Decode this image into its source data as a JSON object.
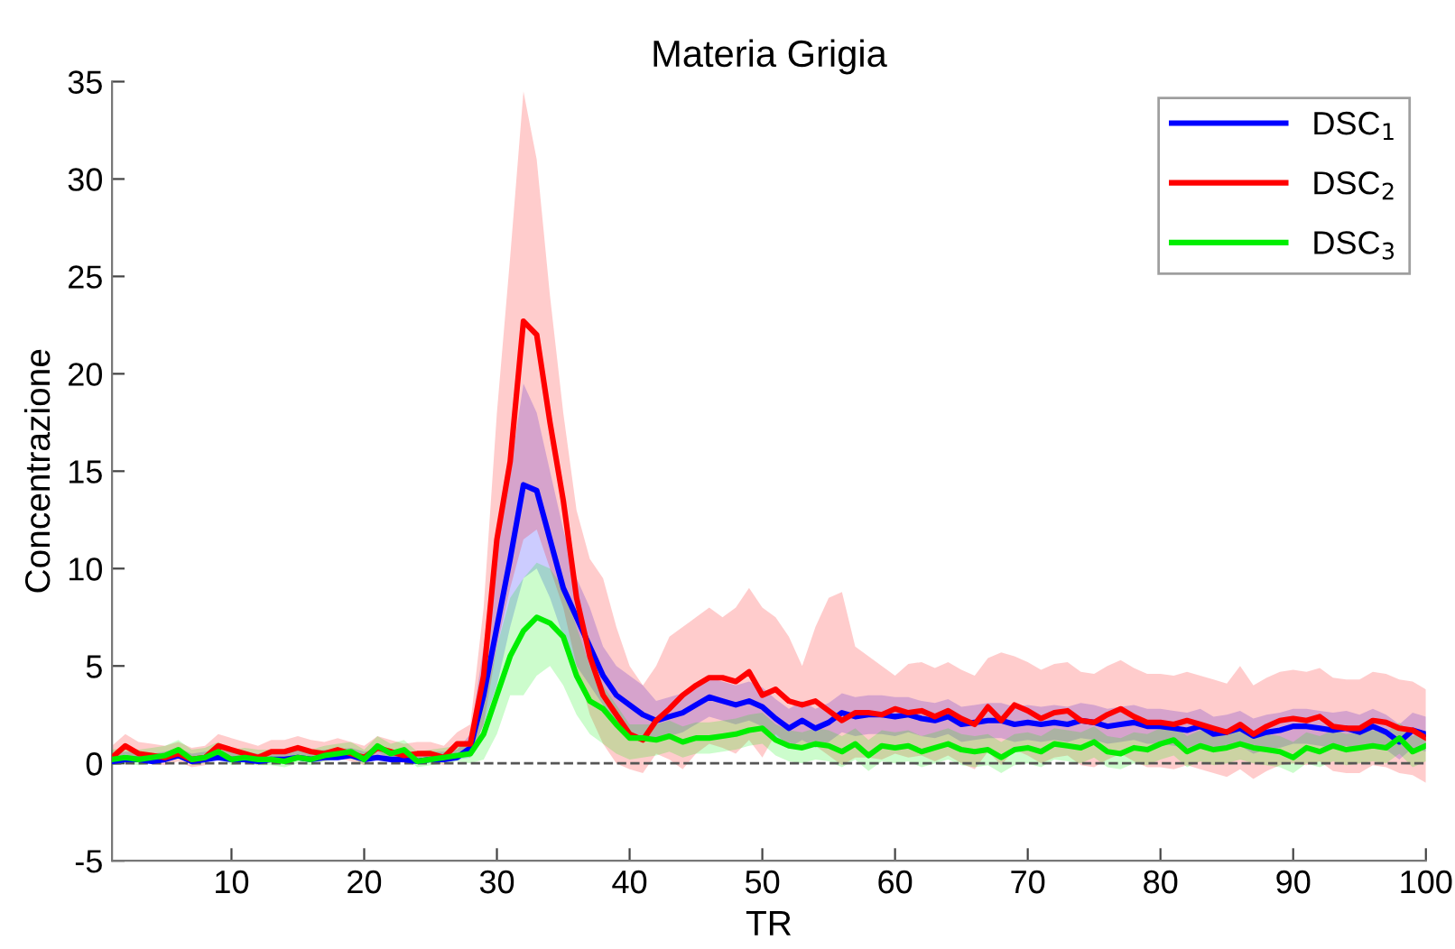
{
  "chart_data": {
    "type": "line",
    "title": "Materia Grigia",
    "xlabel": "TR",
    "ylabel": "Concentrazione",
    "x": [
      1,
      2,
      3,
      4,
      5,
      6,
      7,
      8,
      9,
      10,
      11,
      12,
      13,
      14,
      15,
      16,
      17,
      18,
      19,
      20,
      21,
      22,
      23,
      24,
      25,
      26,
      27,
      28,
      29,
      30,
      31,
      32,
      33,
      34,
      35,
      36,
      37,
      38,
      39,
      40,
      41,
      42,
      43,
      44,
      45,
      46,
      47,
      48,
      49,
      50,
      51,
      52,
      53,
      54,
      55,
      56,
      57,
      58,
      59,
      60,
      61,
      62,
      63,
      64,
      65,
      66,
      67,
      68,
      69,
      70,
      71,
      72,
      73,
      74,
      75,
      76,
      77,
      78,
      79,
      80,
      81,
      82,
      83,
      84,
      85,
      86,
      87,
      88,
      89,
      90,
      91,
      92,
      93,
      94,
      95,
      96,
      97,
      98,
      99,
      100
    ],
    "series": [
      {
        "name": "DSC$_{1}$",
        "color": "#0000ff",
        "values": [
          0.1,
          0.2,
          0.2,
          0.1,
          0.2,
          0.4,
          0.1,
          0.2,
          0.3,
          0.2,
          0.2,
          0.1,
          0.2,
          0.2,
          0.3,
          0.2,
          0.3,
          0.3,
          0.4,
          0.2,
          0.3,
          0.2,
          0.2,
          0.1,
          0.2,
          0.2,
          0.3,
          0.8,
          3.5,
          7.0,
          10.5,
          14.3,
          14.0,
          11.5,
          9.0,
          7.5,
          6.0,
          4.5,
          3.5,
          3.0,
          2.5,
          2.2,
          2.4,
          2.6,
          3.0,
          3.4,
          3.2,
          3.0,
          3.2,
          2.9,
          2.3,
          1.8,
          2.2,
          1.8,
          2.1,
          2.6,
          2.4,
          2.5,
          2.5,
          2.4,
          2.5,
          2.3,
          2.2,
          2.4,
          2.0,
          2.1,
          2.2,
          2.2,
          2.0,
          2.1,
          2.0,
          2.1,
          2.0,
          2.2,
          2.1,
          1.9,
          2.0,
          2.1,
          1.9,
          1.9,
          1.8,
          1.7,
          1.9,
          1.5,
          1.6,
          1.8,
          1.4,
          1.6,
          1.7,
          1.9,
          1.9,
          1.8,
          1.7,
          1.8,
          1.6,
          1.9,
          1.6,
          1.1,
          1.7,
          1.5
        ],
        "upper": [
          0.5,
          0.6,
          0.6,
          0.5,
          0.6,
          0.8,
          0.5,
          0.6,
          0.7,
          0.6,
          0.6,
          0.5,
          0.6,
          0.6,
          0.7,
          0.6,
          0.7,
          0.7,
          0.8,
          0.6,
          0.7,
          0.6,
          0.6,
          0.5,
          0.6,
          0.6,
          0.7,
          1.5,
          6,
          11,
          15,
          19.5,
          18,
          15,
          12,
          9.5,
          8,
          6,
          5,
          4.5,
          4,
          3.2,
          3.4,
          3.6,
          4.0,
          4.4,
          4.2,
          4.0,
          4.2,
          3.9,
          3.3,
          2.8,
          3.2,
          2.8,
          3.1,
          3.6,
          3.4,
          3.5,
          3.5,
          3.4,
          3.4,
          3.2,
          3.1,
          3.3,
          2.9,
          3.0,
          3.1,
          3.1,
          2.9,
          3.0,
          2.9,
          3.0,
          2.9,
          3.1,
          3.0,
          2.8,
          2.9,
          3.0,
          2.8,
          2.8,
          2.7,
          2.6,
          2.8,
          2.4,
          2.5,
          2.7,
          2.3,
          2.5,
          2.6,
          2.8,
          2.8,
          2.7,
          2.6,
          2.7,
          2.5,
          2.8,
          2.5,
          2.0,
          2.6,
          2.4
        ],
        "lower": [
          0.0,
          0.1,
          0.1,
          0.0,
          0.1,
          0.3,
          0.0,
          0.1,
          0.2,
          0.1,
          0.1,
          0.0,
          0.1,
          0.1,
          0.2,
          0.1,
          0.2,
          0.2,
          0.3,
          0.1,
          0.2,
          0.1,
          0.1,
          0.0,
          0.1,
          0.1,
          0.2,
          0.3,
          2,
          4,
          7,
          9.5,
          10,
          8.5,
          6.5,
          5,
          4,
          3,
          2,
          1.5,
          1.2,
          1.2,
          1.4,
          1.6,
          2.0,
          2.4,
          2.2,
          2.0,
          2.2,
          1.9,
          1.3,
          0.8,
          1.2,
          0.8,
          1.1,
          1.6,
          1.4,
          1.5,
          1.5,
          1.4,
          1.6,
          1.4,
          1.3,
          1.5,
          1.1,
          1.2,
          1.3,
          1.3,
          1.1,
          1.2,
          1.1,
          1.2,
          1.1,
          1.3,
          1.2,
          1.0,
          1.1,
          1.2,
          1.0,
          1.0,
          0.9,
          0.8,
          1.0,
          0.6,
          0.7,
          0.9,
          0.5,
          0.7,
          0.8,
          1.0,
          1.0,
          0.9,
          0.8,
          0.9,
          0.7,
          1.0,
          0.7,
          0.2,
          0.8,
          0.6
        ]
      },
      {
        "name": "DSC$_{2}$",
        "color": "#ff0000",
        "values": [
          0.3,
          0.9,
          0.5,
          0.4,
          0.3,
          0.5,
          0.2,
          0.3,
          0.9,
          0.7,
          0.5,
          0.3,
          0.6,
          0.6,
          0.8,
          0.6,
          0.5,
          0.7,
          0.5,
          0.3,
          0.8,
          0.6,
          0.4,
          0.5,
          0.5,
          0.3,
          1.0,
          1.0,
          4.5,
          11.5,
          15.5,
          22.7,
          22.0,
          17.5,
          13.5,
          8.5,
          5.5,
          3.5,
          2.5,
          1.5,
          1.2,
          2.2,
          2.8,
          3.5,
          4.0,
          4.4,
          4.4,
          4.2,
          4.7,
          3.5,
          3.8,
          3.2,
          3.0,
          3.2,
          2.7,
          2.2,
          2.6,
          2.6,
          2.5,
          2.8,
          2.6,
          2.7,
          2.4,
          2.7,
          2.3,
          2.0,
          2.9,
          2.2,
          3.0,
          2.7,
          2.3,
          2.6,
          2.7,
          2.2,
          2.1,
          2.5,
          2.8,
          2.4,
          2.1,
          2.1,
          2.0,
          2.2,
          2.0,
          1.8,
          1.6,
          2.0,
          1.5,
          1.9,
          2.2,
          2.3,
          2.2,
          2.4,
          1.9,
          1.8,
          1.8,
          2.2,
          2.1,
          1.8,
          1.7,
          1.3
        ],
        "upper": [
          0.9,
          1.5,
          1.1,
          1.0,
          0.9,
          1.1,
          0.8,
          0.9,
          1.5,
          1.3,
          1.1,
          0.9,
          1.2,
          1.2,
          1.4,
          1.2,
          1.1,
          1.3,
          1.1,
          0.9,
          1.4,
          1.2,
          1.0,
          1.1,
          1.1,
          0.9,
          1.6,
          2,
          8,
          18,
          26,
          34.5,
          31,
          24,
          18,
          13,
          10.5,
          9.5,
          7,
          5,
          4,
          5,
          6.5,
          7,
          7.5,
          8,
          7.5,
          8,
          9,
          8,
          7.5,
          6.5,
          5,
          7,
          8.5,
          8.8,
          6,
          5.5,
          5,
          4.5,
          5.1,
          5.2,
          4.9,
          5.2,
          4.8,
          4.5,
          5.4,
          5.7,
          5.5,
          5.2,
          4.8,
          5.1,
          5.2,
          4.7,
          4.6,
          5.0,
          5.3,
          4.9,
          4.6,
          4.6,
          4.5,
          4.7,
          4.5,
          4.3,
          4.1,
          5.0,
          4.0,
          4.4,
          4.7,
          4.8,
          4.7,
          4.9,
          4.4,
          4.3,
          4.3,
          4.7,
          4.6,
          4.3,
          4.2,
          3.8
        ],
        "lower": [
          -0.1,
          0.5,
          0.1,
          0.0,
          -0.1,
          0.1,
          -0.2,
          -0.1,
          0.5,
          0.3,
          0.1,
          -0.1,
          0.2,
          0.2,
          0.4,
          0.2,
          0.1,
          0.3,
          0.1,
          -0.1,
          0.4,
          0.2,
          0.0,
          0.1,
          0.1,
          -0.1,
          0.6,
          0.3,
          2,
          6,
          9,
          11.5,
          12,
          10,
          8,
          5,
          2.5,
          1,
          0,
          -0.3,
          -0.5,
          0.5,
          0.2,
          -0.3,
          0.5,
          1,
          0.8,
          0.5,
          1.2,
          0.3,
          1.5,
          0.9,
          0.7,
          0.9,
          0.4,
          -0.1,
          0.3,
          0.3,
          0.2,
          0.5,
          0.3,
          0.4,
          0.1,
          0.4,
          0.0,
          -0.3,
          0.6,
          -0.1,
          0.7,
          0.4,
          0.0,
          0.3,
          0.4,
          -0.1,
          -0.2,
          0.2,
          0.5,
          0.1,
          -0.2,
          -0.2,
          -0.3,
          -0.1,
          -0.3,
          -0.5,
          -0.7,
          -0.3,
          -0.8,
          -0.4,
          -0.1,
          0.0,
          -0.1,
          0.1,
          -0.4,
          -0.5,
          -0.5,
          -0.1,
          -0.2,
          -0.5,
          -0.6,
          -1.0
        ]
      },
      {
        "name": "DSC$_{3}$",
        "color": "#00ee00",
        "values": [
          0.2,
          0.3,
          0.2,
          0.3,
          0.4,
          0.7,
          0.2,
          0.3,
          0.6,
          0.2,
          0.3,
          0.2,
          0.2,
          0.1,
          0.3,
          0.2,
          0.4,
          0.5,
          0.6,
          0.2,
          0.9,
          0.5,
          0.7,
          0.1,
          0.2,
          0.3,
          0.4,
          0.5,
          1.5,
          3.5,
          5.5,
          6.8,
          7.5,
          7.2,
          6.5,
          4.5,
          3.2,
          2.8,
          2.0,
          1.3,
          1.3,
          1.2,
          1.4,
          1.1,
          1.3,
          1.3,
          1.4,
          1.5,
          1.7,
          1.8,
          1.2,
          0.9,
          0.8,
          1.0,
          0.9,
          0.6,
          1.0,
          0.4,
          0.9,
          0.8,
          0.9,
          0.6,
          0.8,
          1.0,
          0.7,
          0.6,
          0.7,
          0.3,
          0.7,
          0.8,
          0.6,
          1.0,
          0.9,
          0.8,
          1.1,
          0.6,
          0.5,
          0.8,
          0.7,
          1.0,
          1.2,
          0.6,
          0.9,
          0.7,
          0.8,
          1.0,
          0.8,
          0.7,
          0.6,
          0.3,
          0.8,
          0.6,
          0.9,
          0.7,
          0.8,
          0.9,
          0.8,
          1.3,
          0.6,
          0.9
        ],
        "upper": [
          0.7,
          0.8,
          0.7,
          0.8,
          0.9,
          1.2,
          0.7,
          0.8,
          1.1,
          0.7,
          0.8,
          0.7,
          0.7,
          0.6,
          0.8,
          0.7,
          0.9,
          1.0,
          1.1,
          0.7,
          1.4,
          1.0,
          1.2,
          0.6,
          0.7,
          0.8,
          0.9,
          1,
          3,
          6,
          8.5,
          9.5,
          10.3,
          10,
          9,
          7,
          5,
          4,
          3,
          2,
          2,
          2.0,
          2.2,
          1.9,
          2.1,
          2.1,
          2.2,
          2.3,
          2.5,
          2.6,
          2.0,
          1.7,
          1.6,
          1.8,
          1.7,
          1.4,
          1.8,
          1.2,
          1.7,
          1.6,
          1.7,
          1.4,
          1.6,
          1.8,
          1.5,
          1.4,
          1.5,
          1.1,
          1.5,
          1.6,
          1.4,
          1.8,
          1.7,
          1.6,
          1.9,
          1.4,
          1.3,
          1.6,
          1.5,
          1.8,
          2.0,
          1.4,
          1.7,
          1.5,
          1.6,
          1.8,
          1.6,
          1.5,
          1.4,
          1.1,
          1.6,
          1.4,
          1.7,
          1.5,
          1.6,
          1.7,
          1.6,
          2.1,
          1.4,
          1.7
        ],
        "lower": [
          -0.1,
          0.0,
          -0.1,
          0.0,
          0.1,
          0.4,
          -0.1,
          0.0,
          0.3,
          -0.1,
          0.0,
          -0.1,
          -0.1,
          -0.2,
          0.0,
          -0.1,
          0.1,
          0.2,
          0.3,
          -0.1,
          0.6,
          0.2,
          0.4,
          -0.2,
          -0.1,
          0.0,
          0.1,
          0,
          0.2,
          1.5,
          3.5,
          3.5,
          4.5,
          5,
          4,
          2.5,
          1.5,
          1,
          0.5,
          0.2,
          0.3,
          0.4,
          0.6,
          0.3,
          0.5,
          0.5,
          0.6,
          0.7,
          0.9,
          1.0,
          0.4,
          0.1,
          0.0,
          0.2,
          0.1,
          -0.2,
          0.2,
          -0.4,
          0.1,
          0.0,
          0.1,
          -0.2,
          0.0,
          0.2,
          -0.1,
          -0.2,
          -0.1,
          -0.5,
          -0.1,
          0.0,
          -0.2,
          0.2,
          0.1,
          0.0,
          0.3,
          -0.2,
          -0.3,
          0.0,
          -0.1,
          0.2,
          0.4,
          -0.2,
          0.1,
          -0.1,
          0.0,
          0.2,
          0.0,
          -0.1,
          -0.2,
          -0.5,
          0.0,
          -0.2,
          0.1,
          -0.1,
          0.0,
          0.1,
          0.0,
          0.5,
          -0.2,
          0.1
        ]
      }
    ],
    "xlim": [
      1,
      100
    ],
    "xticks": [
      10,
      20,
      30,
      40,
      50,
      60,
      70,
      80,
      90,
      100
    ],
    "ylim": [
      -5,
      35
    ],
    "yticks": [
      -5,
      0,
      5,
      10,
      15,
      20,
      25,
      30,
      35
    ],
    "ref_lines": [
      {
        "axis": "y",
        "value": 0,
        "color": "#555555",
        "line_style": "dashed"
      }
    ],
    "grid": false,
    "legend": "top right",
    "marker": "none",
    "line_style": "solid"
  }
}
